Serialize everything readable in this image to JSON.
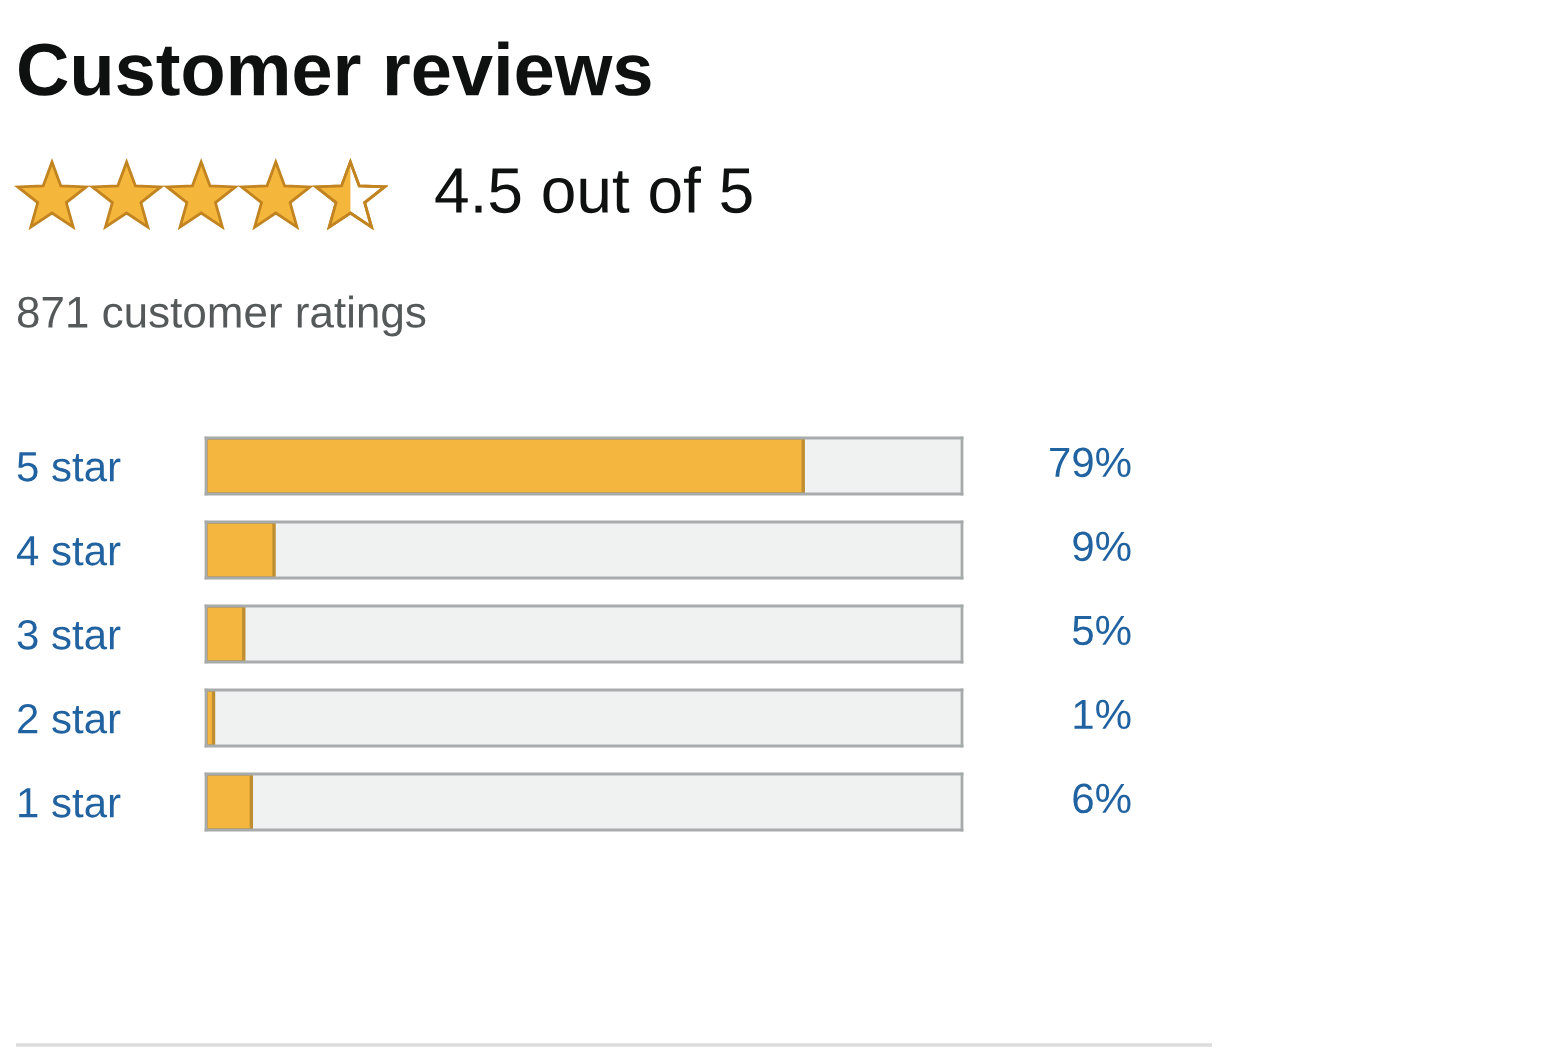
{
  "chart_data": {
    "type": "bar",
    "orientation": "horizontal",
    "title": "Customer reviews",
    "subtitle": "4.5 out of 5",
    "annotations": [
      "871 customer ratings"
    ],
    "categories": [
      "5 star",
      "4 star",
      "3 star",
      "2 star",
      "1 star"
    ],
    "values": [
      79,
      9,
      5,
      1,
      6
    ],
    "value_labels": [
      "79%",
      "9%",
      "5%",
      "1%",
      "6%"
    ],
    "color": "#f4b63f",
    "xlim": [
      0,
      100
    ],
    "tick_labels": "y",
    "grid": false,
    "legend": false
  }
}
